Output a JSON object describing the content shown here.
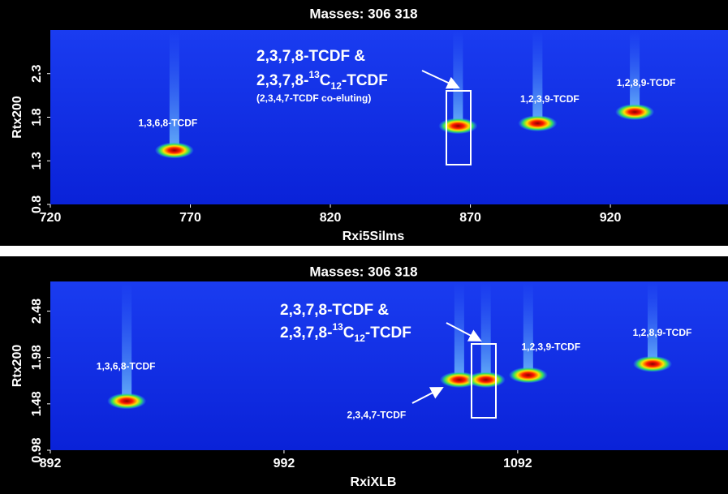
{
  "chart_data": [
    {
      "type": "scatter",
      "title": "Masses: 306 318",
      "xlabel": "Rxi5Silms",
      "ylabel": "Rtx200",
      "xlim": [
        720,
        962
      ],
      "ylim": [
        0.8,
        2.8
      ],
      "xticks": [
        720,
        770,
        820,
        870,
        920
      ],
      "yticks": [
        0.8,
        1.3,
        1.8,
        2.3
      ],
      "x": [
        764.3,
        865.6,
        894,
        928.7
      ],
      "y": [
        1.42,
        1.7,
        1.73,
        1.86
      ],
      "labels": [
        "1,3,6,8-TCDF",
        null,
        "1,2,3,9-TCDF",
        "1,2,8,9-TCDF"
      ],
      "callout": [
        "2,3,7,8-TCDF &",
        "2,3,7,8-",
        "13",
        "C",
        "12",
        "-TCDF",
        "(2,3,4,7-TCDF co-eluting)"
      ]
    },
    {
      "type": "scatter",
      "title": "Masses: 306 318",
      "xlabel": "RxiXLB",
      "ylabel": "Rtx200",
      "xlim": [
        892,
        1182
      ],
      "ylim": [
        0.98,
        2.8
      ],
      "xticks": [
        892,
        992,
        1092
      ],
      "yticks": [
        0.98,
        1.48,
        1.98,
        2.48
      ],
      "x": [
        924.7,
        1067,
        1078.4,
        1096.5,
        1149.7
      ],
      "y": [
        1.51,
        1.74,
        1.74,
        1.79,
        1.91
      ],
      "labels": [
        "1,3,6,8-TCDF",
        "2,3,4,7-TCDF",
        null,
        "1,2,3,9-TCDF",
        "1,2,8,9-TCDF"
      ],
      "callout": [
        "2,3,7,8-TCDF &",
        "2,3,7,8-",
        "13",
        "C",
        "12",
        "-TCDF"
      ]
    }
  ]
}
